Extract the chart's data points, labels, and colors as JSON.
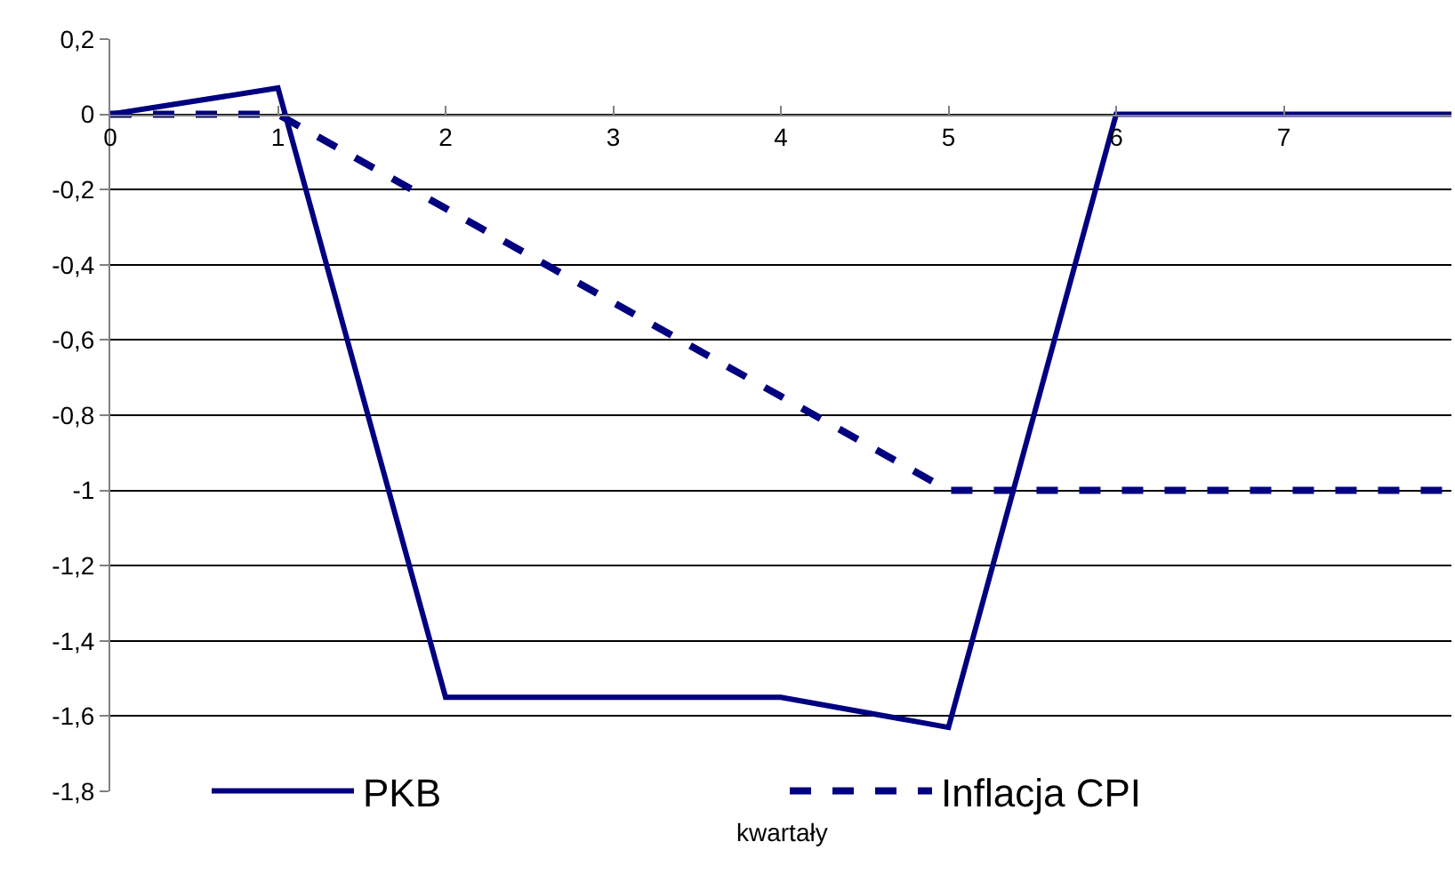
{
  "chart_data": {
    "type": "line",
    "xlabel": "kwartały",
    "x": [
      0,
      1,
      2,
      3,
      4,
      5,
      6,
      7,
      8
    ],
    "series": [
      {
        "name": "PKB",
        "color": "#000080",
        "line_style": "solid",
        "values": [
          0,
          0.07,
          -1.55,
          -1.55,
          -1.55,
          -1.63,
          0,
          0,
          0
        ]
      },
      {
        "name": "Inflacja CPI",
        "color": "#000080",
        "line_style": "dashed",
        "values": [
          0,
          0,
          -0.25,
          -0.5,
          -0.75,
          -1,
          -1,
          -1,
          -1
        ]
      }
    ],
    "xlim": [
      0,
      8
    ],
    "xticks": [
      0,
      1,
      2,
      3,
      4,
      5,
      6,
      7
    ],
    "ylim": [
      -1.8,
      0.2
    ],
    "yticks": [
      {
        "value": 0.2,
        "label": "0,2"
      },
      0,
      {
        "value": -0.2,
        "label": "-0,2"
      },
      {
        "value": -0.4,
        "label": "-0,4"
      },
      {
        "value": -0.6,
        "label": "-0,6"
      },
      {
        "value": -0.8,
        "label": "-0,8"
      },
      -1,
      {
        "value": -1.2,
        "label": "-1,2"
      },
      {
        "value": -1.4,
        "label": "-1,4"
      },
      {
        "value": -1.6,
        "label": "-1,6"
      },
      {
        "value": -1.8,
        "label": "-1,8"
      }
    ],
    "grid": "y",
    "legend": "bottom",
    "marker": "none"
  }
}
